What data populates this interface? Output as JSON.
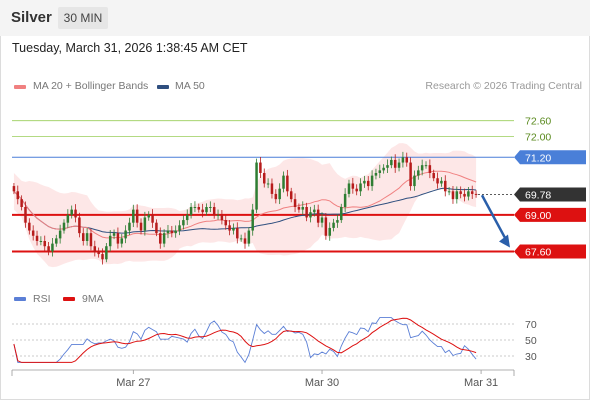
{
  "header": {
    "symbol": "Silver",
    "timeframe": "30 MIN"
  },
  "timestamp": "Tuesday, March 31, 2026 1:38:45 AM CET",
  "legend_main": [
    {
      "label": "MA 20 + Bollinger Bands",
      "color": "#f08080"
    },
    {
      "label": "MA 50",
      "color": "#2f4f7f"
    }
  ],
  "credit": "Research © 2026 Trading Central",
  "legend_rsi": [
    {
      "label": "RSI",
      "color": "#5b7fd6"
    },
    {
      "label": "9MA",
      "color": "#dd1111"
    }
  ],
  "colors": {
    "up": "#2e7d32",
    "down": "#b71c1c",
    "bollinger_fill": "#fde3e3",
    "ma20": "#f08080",
    "ma50": "#2f4f7f"
  },
  "chart_data": [
    {
      "type": "candlestick",
      "instrument": "Silver",
      "interval": "30 MIN",
      "ylim": [
        66.7,
        73.2
      ],
      "x_tick_labels": [
        "Mar 27",
        "Mar 30",
        "Mar 31"
      ],
      "levels": [
        {
          "value": 72.6,
          "label": "72.60",
          "kind": "resistance"
        },
        {
          "value": 72.0,
          "label": "72.00",
          "kind": "resistance"
        },
        {
          "value": 71.2,
          "label": "71.20",
          "kind": "pivot"
        },
        {
          "value": 69.78,
          "label": "69.78",
          "kind": "last"
        },
        {
          "value": 69.0,
          "label": "69.00",
          "kind": "support"
        },
        {
          "value": 67.6,
          "label": "67.60",
          "kind": "support"
        }
      ],
      "forecast_arrow": {
        "from": 69.75,
        "to": 67.75
      },
      "series": [
        {
          "name": "MA 20 + Bollinger Bands",
          "color": "#f08080"
        },
        {
          "name": "MA 50",
          "color": "#2f4f7f"
        }
      ],
      "close": [
        69.9,
        69.6,
        69.3,
        68.7,
        68.4,
        68.2,
        68.0,
        68.0,
        67.8,
        67.6,
        67.9,
        68.1,
        68.4,
        68.7,
        69.0,
        69.2,
        68.9,
        68.3,
        68.0,
        68.3,
        67.8,
        67.6,
        67.5,
        67.3,
        67.8,
        68.2,
        68.3,
        67.9,
        68.1,
        68.4,
        68.7,
        69.2,
        68.7,
        68.4,
        68.9,
        69.0,
        68.7,
        68.3,
        67.9,
        68.3,
        68.4,
        68.3,
        68.4,
        68.6,
        68.8,
        69.0,
        69.3,
        69.3,
        69.2,
        69.1,
        69.3,
        69.3,
        69.0,
        69.0,
        68.8,
        68.6,
        68.4,
        68.5,
        68.1,
        68.1,
        67.9,
        68.4,
        69.2,
        71.0,
        70.6,
        70.2,
        70.2,
        69.8,
        69.6,
        70.0,
        70.5,
        69.9,
        69.6,
        69.3,
        69.2,
        69.3,
        68.9,
        69.1,
        69.2,
        68.7,
        68.9,
        68.2,
        68.5,
        68.7,
        68.8,
        69.3,
        69.8,
        70.2,
        70.0,
        69.9,
        70.2,
        70.3,
        70.1,
        70.5,
        70.6,
        70.7,
        70.8,
        70.9,
        71.1,
        70.8,
        71.0,
        71.2,
        71.0,
        70.1,
        70.5,
        70.7,
        70.9,
        70.9,
        70.6,
        70.4,
        70.2,
        70.3,
        69.9,
        69.9,
        69.6,
        69.9,
        69.8,
        69.7,
        69.9,
        69.8,
        69.78
      ]
    },
    {
      "type": "line",
      "title": "RSI",
      "ylim": [
        20,
        80
      ],
      "y_tick_labels": [
        "70",
        "50",
        "30"
      ],
      "series": [
        {
          "name": "RSI",
          "color": "#5b7fd6"
        },
        {
          "name": "9MA",
          "color": "#dd1111"
        }
      ]
    }
  ]
}
